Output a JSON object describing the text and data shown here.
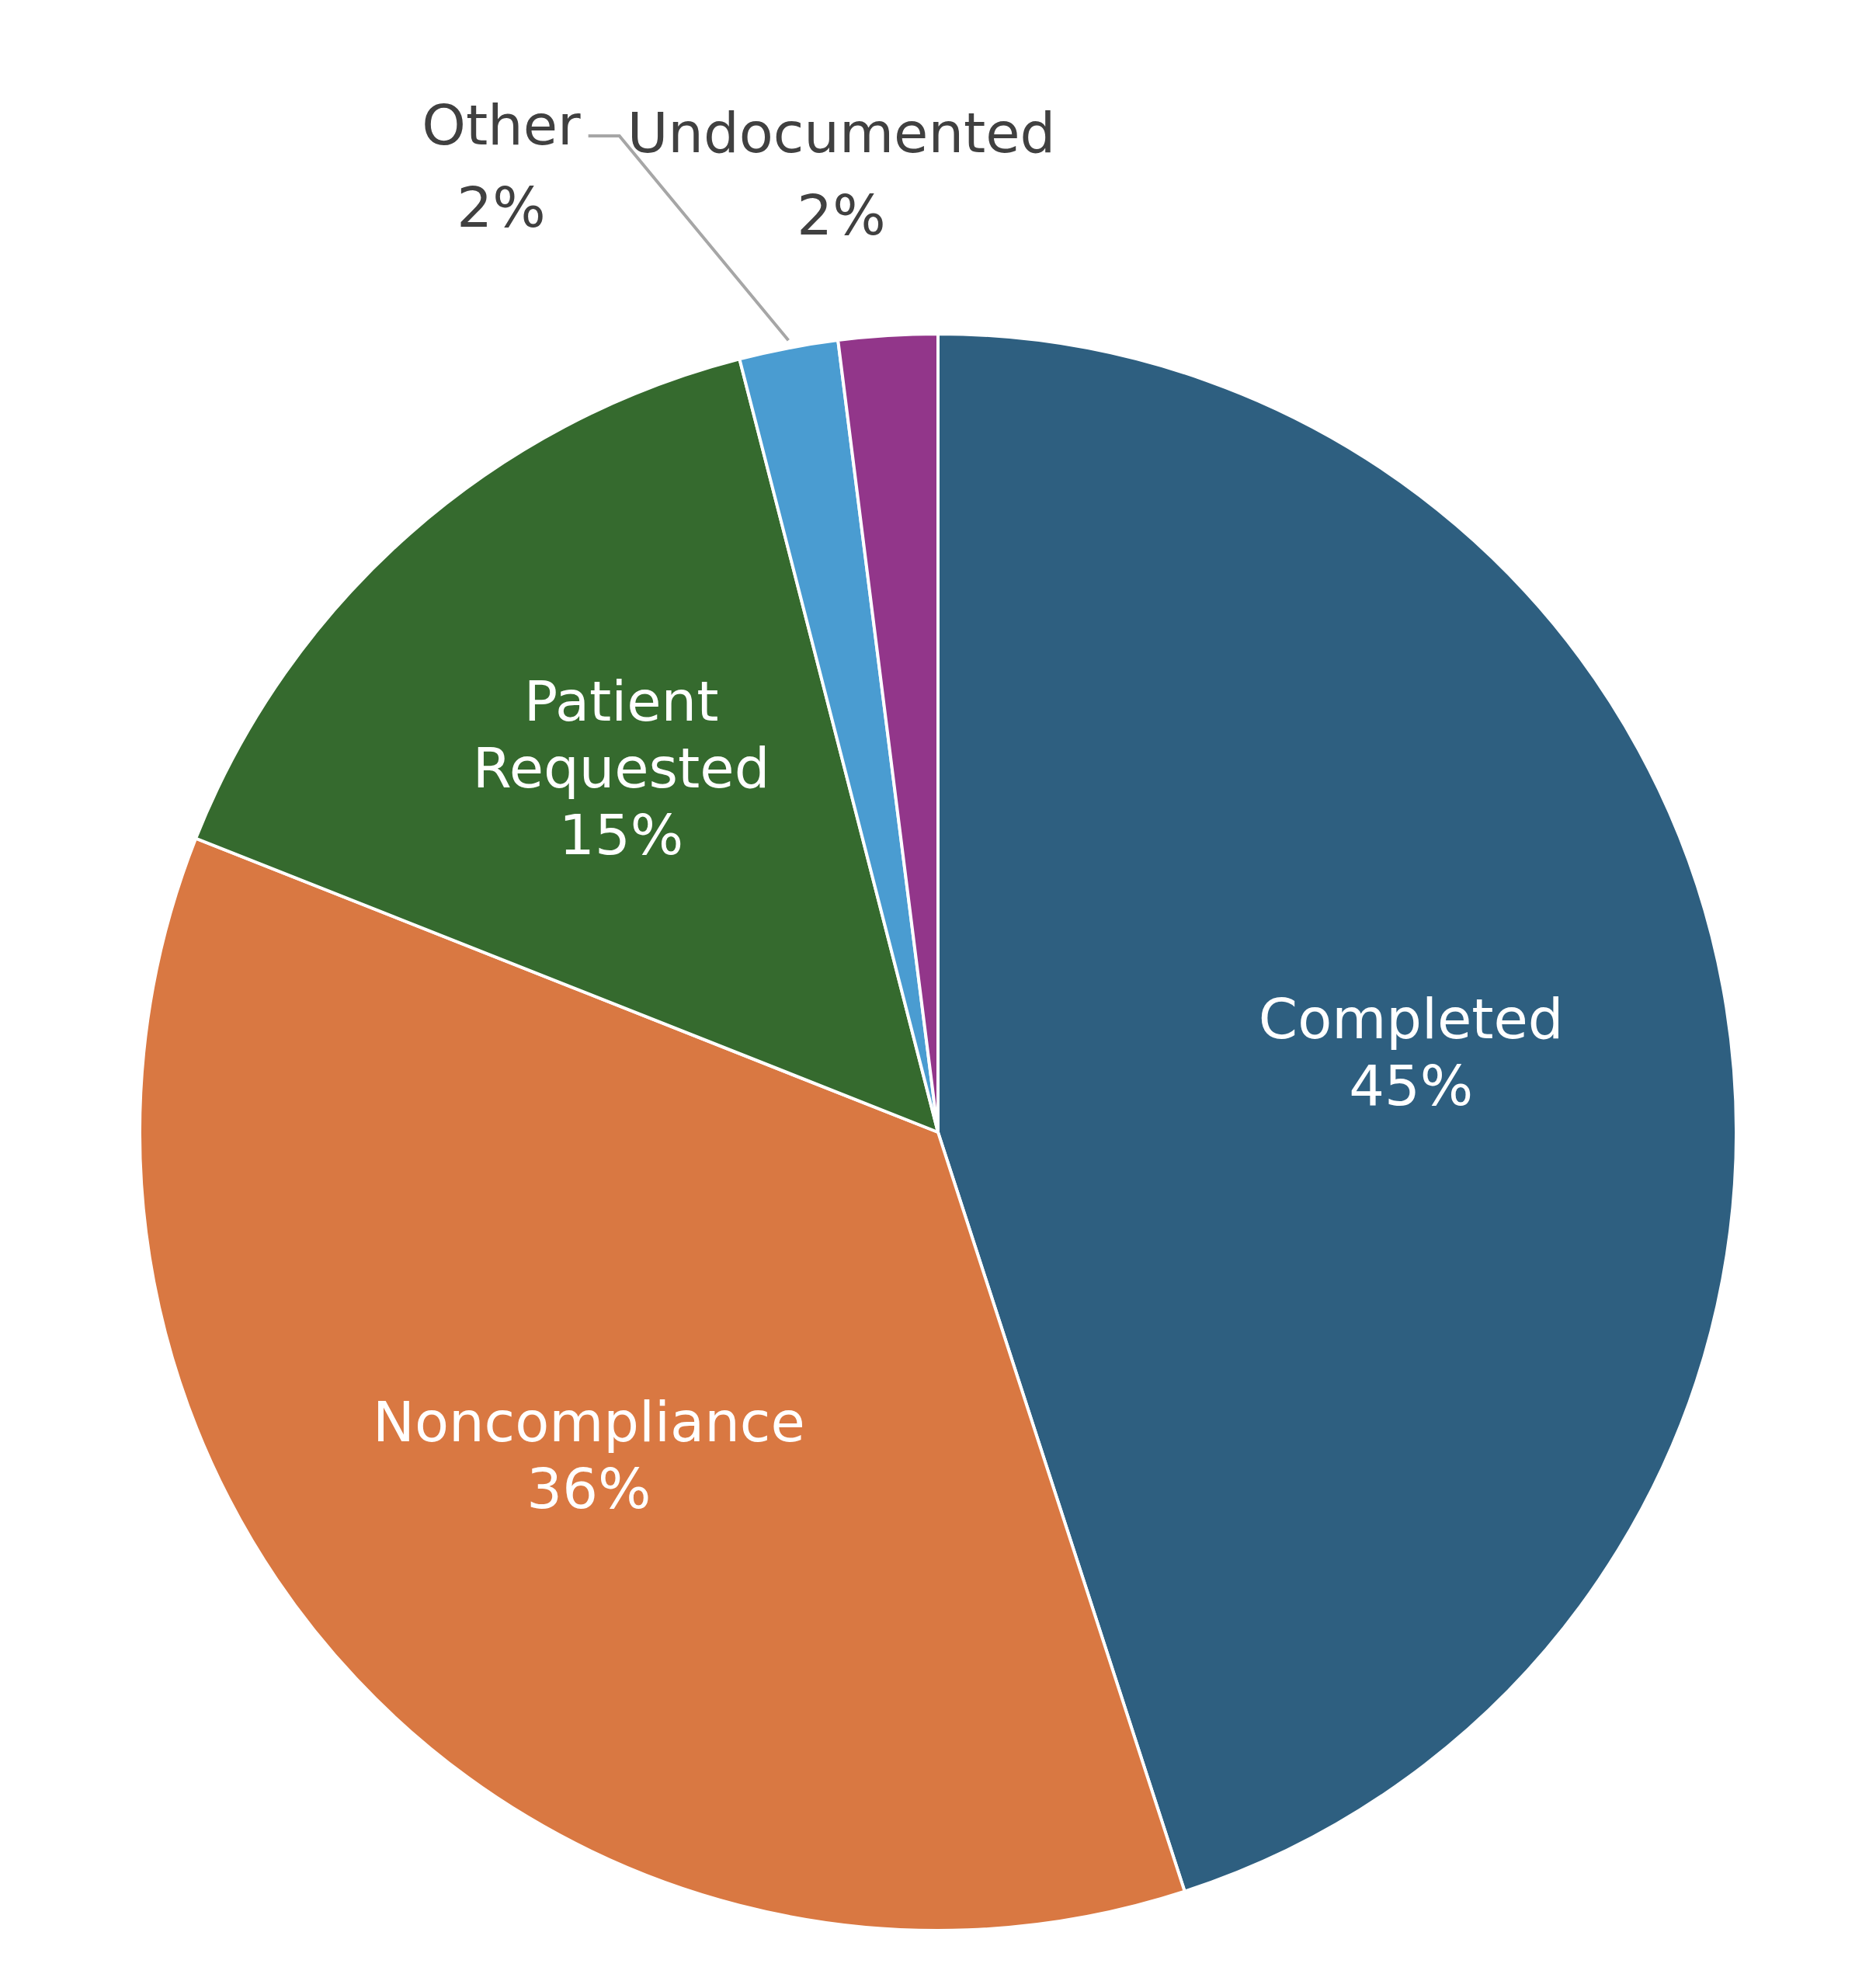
{
  "chart_data": {
    "type": "pie",
    "categories": [
      "Completed",
      "Noncompliance",
      "Patient Requested",
      "Other",
      "Undocumented"
    ],
    "values": [
      45,
      36,
      15,
      2,
      2
    ],
    "colors": [
      "#2e5f80",
      "#d97842",
      "#356a2e",
      "#4a9cd1",
      "#92368a"
    ],
    "value_labels": [
      "45%",
      "36%",
      "15%",
      "2%",
      "2%"
    ],
    "legend": false
  }
}
